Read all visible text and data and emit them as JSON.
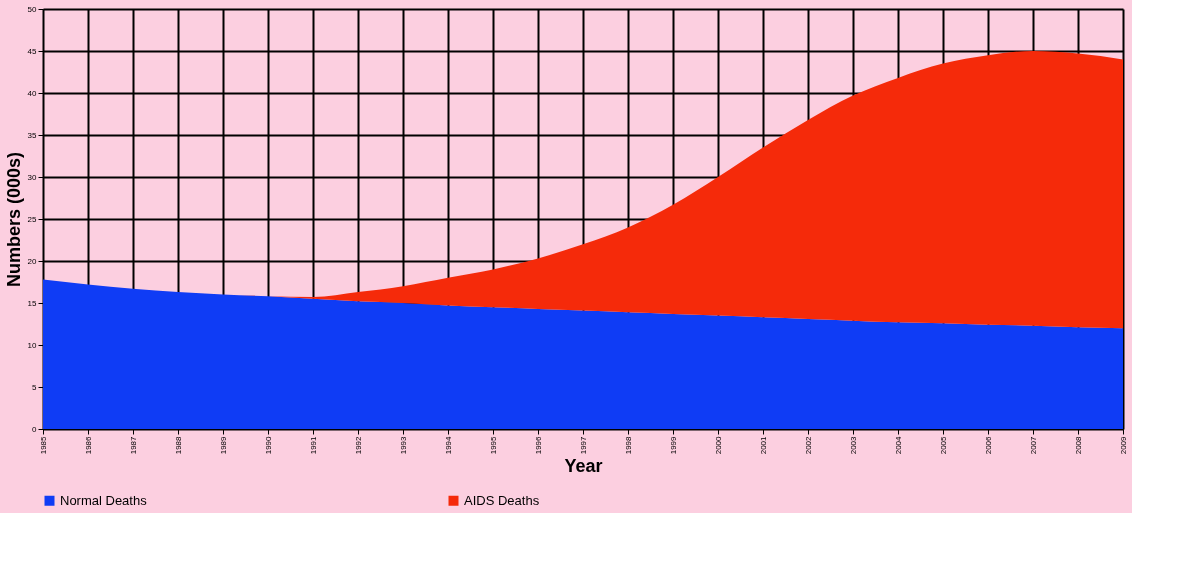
{
  "chart_data": {
    "type": "area",
    "stacked": true,
    "xlabel": "Year",
    "ylabel": "Numbers (000s)",
    "categories": [
      "1985",
      "1986",
      "1987",
      "1988",
      "1989",
      "1990",
      "1991",
      "1992",
      "1993",
      "1994",
      "1995",
      "1996",
      "1997",
      "1998",
      "1999",
      "2000",
      "2001",
      "2002",
      "2003",
      "2004",
      "2005",
      "2006",
      "2007",
      "2008",
      "2009"
    ],
    "series": [
      {
        "name": "Normal Deaths",
        "color": "#0f3cf5",
        "values": [
          17.8,
          17.2,
          16.7,
          16.3,
          16.0,
          15.8,
          15.5,
          15.2,
          15.0,
          14.7,
          14.5,
          14.3,
          14.1,
          13.9,
          13.7,
          13.5,
          13.3,
          13.1,
          12.9,
          12.7,
          12.6,
          12.4,
          12.3,
          12.1,
          12.0
        ]
      },
      {
        "name": "AIDS Deaths",
        "color": "#f52a0a",
        "values": [
          0,
          0,
          0,
          0,
          0,
          0,
          0.2,
          1.1,
          2.0,
          3.3,
          4.5,
          6.0,
          7.9,
          10.1,
          13.0,
          16.5,
          20.2,
          23.7,
          26.8,
          29.1,
          30.9,
          32.1,
          32.7,
          32.6,
          32.0
        ]
      }
    ],
    "ylim": [
      0,
      50
    ],
    "yticks": [
      0,
      5,
      10,
      15,
      20,
      25,
      30,
      35,
      40,
      45,
      50
    ],
    "grid": true,
    "legend": "bottom"
  }
}
